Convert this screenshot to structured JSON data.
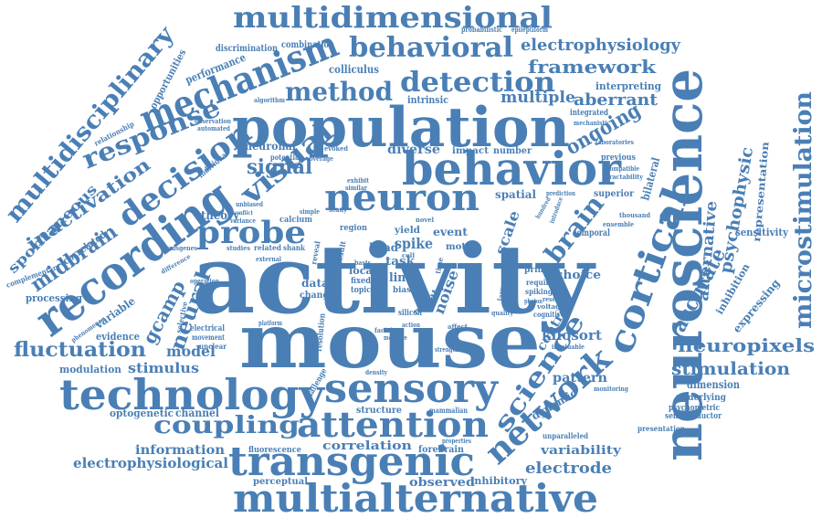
{
  "color": "#4a7fb5",
  "words": {
    "activity": "activity",
    "mouse": "mouse",
    "population": "population",
    "neuroscience": "neuroscience",
    "behavior": "behavior",
    "recording": "recording",
    "technology": "technology",
    "sensory": "sensory",
    "transgenic": "transgenic",
    "multialternative": "multialternative",
    "multidimensional": "multidimensional",
    "mechanism": "mechanism",
    "neuron": "neuron",
    "attention": "attention",
    "cortical": "cortical",
    "network": "network",
    "decision": "decision",
    "visual": "visual",
    "probe": "probe",
    "response": "response",
    "multidisciplinary": "multidisciplinary",
    "microstimulation": "microstimulation",
    "behavioral": "behavioral",
    "detection": "detection",
    "method": "method",
    "science": "science",
    "coupling": "coupling",
    "fluctuation": "fluctuation",
    "brain": "brain",
    "ongoing": "ongoing",
    "inactivation": "inactivation",
    "midbrain": "midbrain",
    "neural": "neural",
    "electrophysiology": "electrophysiology",
    "framework": "framework",
    "neuropixels": "neuropixels",
    "stimulation": "stimulation",
    "accurate": "accurate",
    "psychophysic": "psychophysic",
    "alternative": "alternative",
    "gcamp": "gcamp",
    "signal": "signal",
    "aberrant": "aberrant",
    "multiple": "multiple",
    "spontaneous": "spontaneous",
    "electrophysiological": "electrophysiological",
    "electrode": "electrode",
    "spike": "spike",
    "noise": "noise",
    "scale": "scale",
    "model": "model",
    "stimulus": "stimulus",
    "correlation": "correlation",
    "variability": "variability",
    "information": "information",
    "observed": "observed",
    "inhibitory": "inhibitory",
    "perceptual": "perceptual",
    "fluorescence": "fluorescence",
    "forebrain": "forebrain",
    "kilosort": "kilosort",
    "pattern": "pattern",
    "dynamic": "dynamic",
    "control": "control",
    "choice": "choice",
    "primary": "primary",
    "spatial": "spatial",
    "diverse": "diverse",
    "neuronal": "neuronal",
    "impact": "impact",
    "number": "number",
    "channel": "channel",
    "optogenetic": "optogenetic",
    "modulation": "modulation",
    "evidence": "evidence",
    "processing": "processing",
    "variable": "variable",
    "theory": "theory",
    "performance": "performance",
    "colliculus": "colliculus",
    "intrinsic": "intrinsic",
    "interpreting": "interpreting",
    "integrated": "integrated",
    "bilateral": "bilateral",
    "superior": "superior",
    "representation": "representation",
    "sensitivity": "sensitivity",
    "inhibition": "inhibition",
    "expressing": "expressing",
    "dimension": "dimension",
    "underlying": "underlying",
    "psychometric": "psychometric",
    "semiconductor": "semiconductor",
    "presentation": "presentation",
    "unparalleled": "unparalleled",
    "previous": "previous",
    "opportunities": "opportunities",
    "discrimination": "discrimination",
    "combination": "combination",
    "relationship": "relationship",
    "complementary": "complementary",
    "correlated": "correlated",
    "individual": "individual",
    "event": "event",
    "task": "task",
    "local": "local",
    "line": "line",
    "state": "state",
    "more": "more",
    "data": "data",
    "change": "change",
    "resolution": "resolution",
    "head": "head",
    "yield": "yield",
    "motor": "motor",
    "region": "region",
    "calcium": "calcium",
    "related": "related",
    "studies": "studies",
    "transgenes": "transgenes",
    "selective": "selective",
    "electrical": "electrical",
    "movement": "movement",
    "unclear": "unclear",
    "structure": "structure",
    "mammalian": "mammalian",
    "challenge": "challenge",
    "properties": "properties",
    "probabilistic": "probabilistic",
    "epileptiform": "epileptiform",
    "mechanistic": "mechanistic",
    "laboratories": "laboratories",
    "compatible": "compatible",
    "tractability": "tractability",
    "thousand": "thousand",
    "ensemble": "ensemble",
    "temporal": "temporal",
    "require": "require",
    "spiking": "spiking",
    "research": "research",
    "voltage": "voltage",
    "cognitive": "cognitive",
    "quality": "quality",
    "invaluable": "invaluable",
    "monitoring": "monitoring",
    "photon": "photon",
    "observation": "observation",
    "automated": "automated",
    "algorithm": "algorithm",
    "potential": "potential",
    "coverage": "coverage",
    "exhibit": "exhibit",
    "similar": "similar",
    "evoked": "evoked",
    "prediction": "prediction",
    "introduce": "introduce",
    "hundred": "hundred",
    "fixed": "fixed",
    "topic": "topic",
    "basis": "basis",
    "bias": "bias",
    "silicon": "silicon",
    "time": "time",
    "action": "action",
    "strength": "strength",
    "density": "density",
    "facial": "facial",
    "measure": "measure",
    "affect": "affect",
    "platform": "platform",
    "phenomenon": "phenomenon",
    "difference": "difference",
    "operation": "operation",
    "external": "external",
    "shank": "shank",
    "reveal": "reveal",
    "result": "result",
    "novel": "novel",
    "cell": "cell",
    "larger": "larger",
    "simple": "simple",
    "study": "study",
    "unbiased": "unbiased",
    "variance": "variance",
    "conflict": "conflict"
  }
}
